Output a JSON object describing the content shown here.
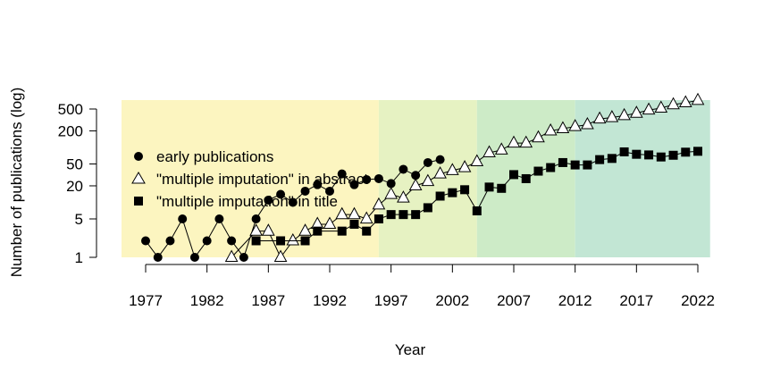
{
  "chart_data": {
    "type": "scatter",
    "title": "",
    "xlabel": "Year",
    "ylabel": "Number of publications (log)",
    "xlim": [
      1977,
      2022
    ],
    "ylim": [
      1,
      700
    ],
    "y_scale": "log",
    "x_ticks": [
      "1977",
      "1982",
      "1987",
      "1992",
      "1997",
      "2002",
      "2007",
      "2012",
      "2017",
      "2022"
    ],
    "y_ticks": [
      "1",
      "5",
      "20",
      "50",
      "200",
      "500"
    ],
    "bands": [
      {
        "from": 1975,
        "to": 1996,
        "color": "#fcf5c0"
      },
      {
        "from": 1996,
        "to": 2004,
        "color": "#e6f2c2"
      },
      {
        "from": 2004,
        "to": 2012,
        "color": "#cdebc7"
      },
      {
        "from": 2012,
        "to": 2023,
        "color": "#c2e6d4"
      }
    ],
    "legend": {
      "placement": "left"
    },
    "series": [
      {
        "name": "early publications",
        "marker": "circle",
        "x": [
          1977,
          1978,
          1979,
          1980,
          1981,
          1982,
          1983,
          1984,
          1985,
          1986,
          1987,
          1988,
          1989,
          1990,
          1991,
          1992,
          1993,
          1994,
          1995,
          1996,
          1997,
          1998,
          1999,
          2000,
          2001
        ],
        "y": [
          2,
          1,
          2,
          5,
          1,
          2,
          5,
          2,
          1,
          5,
          11,
          14,
          10,
          16,
          21,
          16,
          33,
          21,
          26,
          27,
          22,
          40,
          31,
          53,
          60
        ]
      },
      {
        "name": "\"multiple imputation\" in abstract",
        "marker": "triangle",
        "x": [
          1984,
          1986,
          1987,
          1988,
          1989,
          1990,
          1991,
          1992,
          1993,
          1994,
          1995,
          1996,
          1997,
          1998,
          1999,
          2000,
          2001,
          2002,
          2003,
          2004,
          2005,
          2006,
          2007,
          2008,
          2009,
          2010,
          2011,
          2012,
          2013,
          2014,
          2015,
          2016,
          2017,
          2018,
          2019,
          2020,
          2021,
          2022
        ],
        "y": [
          1,
          3,
          3,
          1,
          2,
          3,
          4,
          4,
          6,
          6,
          5,
          9,
          14,
          12,
          20,
          24,
          33,
          38,
          43,
          55,
          80,
          90,
          120,
          120,
          150,
          200,
          220,
          240,
          260,
          330,
          350,
          380,
          420,
          480,
          520,
          600,
          650,
          720
        ]
      },
      {
        "name": "\"multiple imputation\" in title",
        "marker": "square",
        "x": [
          1986,
          1988,
          1990,
          1991,
          1993,
          1994,
          1995,
          1996,
          1997,
          1998,
          1999,
          2000,
          2001,
          2002,
          2003,
          2004,
          2005,
          2006,
          2007,
          2008,
          2009,
          2010,
          2011,
          2012,
          2013,
          2014,
          2015,
          2016,
          2017,
          2018,
          2019,
          2020,
          2021,
          2022
        ],
        "y": [
          2,
          2,
          2,
          3,
          3,
          4,
          3,
          5,
          6,
          6,
          6,
          8,
          13,
          15,
          17,
          7,
          19,
          18,
          32,
          27,
          37,
          43,
          53,
          48,
          48,
          60,
          63,
          83,
          75,
          73,
          67,
          72,
          82,
          85
        ]
      }
    ]
  }
}
